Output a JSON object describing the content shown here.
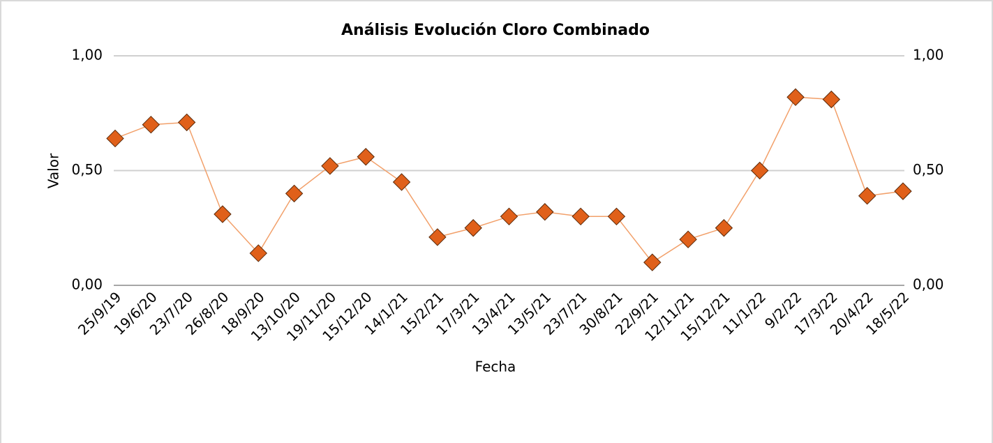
{
  "chart_data": {
    "type": "line",
    "title": "Análisis Evolución Cloro Combinado",
    "x_label": "Fecha",
    "y_label": "Valor",
    "categories": [
      "25/9/19",
      "19/6/20",
      "23/7/20",
      "26/8/20",
      "18/9/20",
      "13/10/20",
      "19/11/20",
      "15/12/20",
      "14/1/21",
      "15/2/21",
      "17/3/21",
      "13/4/21",
      "13/5/21",
      "23/7/21",
      "30/8/21",
      "22/9/21",
      "12/11/21",
      "15/12/21",
      "11/1/22",
      "9/2/22",
      "17/3/22",
      "20/4/22",
      "18/5/22"
    ],
    "series": [
      {
        "name": "Valor",
        "color": "#e0601a",
        "line_color": "#f2a06a",
        "values": [
          0.64,
          0.7,
          0.71,
          0.31,
          0.14,
          0.4,
          0.52,
          0.56,
          0.45,
          0.21,
          0.25,
          0.3,
          0.32,
          0.3,
          0.3,
          0.1,
          0.2,
          0.25,
          0.5,
          0.82,
          0.81,
          0.39,
          0.41
        ]
      }
    ],
    "ylim": [
      0,
      1
    ],
    "yticks": [
      {
        "value": 0,
        "label": "0,00"
      },
      {
        "value": 0.5,
        "label": "0,50"
      },
      {
        "value": 1,
        "label": "1,00"
      }
    ],
    "y2lim": [
      0,
      1
    ],
    "y2ticks": [
      {
        "value": 0,
        "label": "0,00"
      },
      {
        "value": 0.5,
        "label": "0,50"
      },
      {
        "value": 1,
        "label": "1,00"
      }
    ],
    "grid": true
  }
}
